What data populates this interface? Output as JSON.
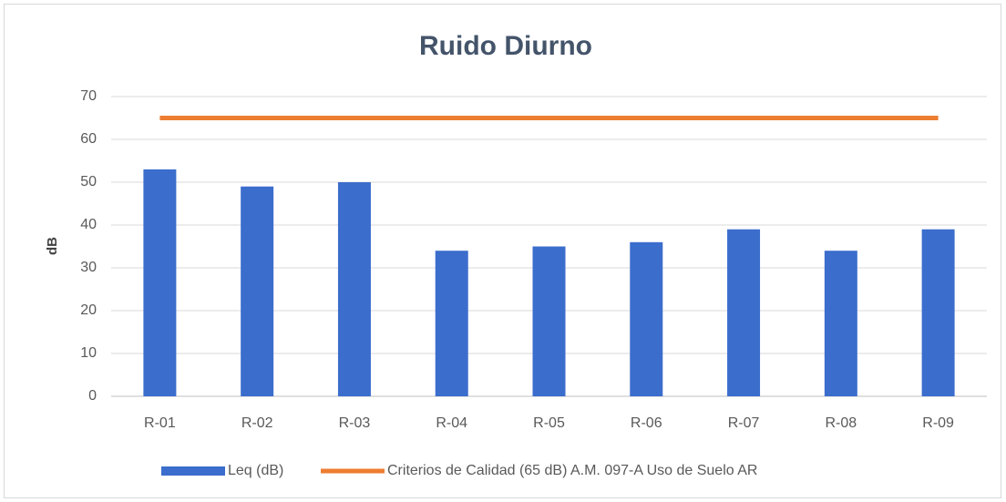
{
  "chart_data": {
    "type": "bar",
    "title": "Ruido Diurno",
    "y_label": "dB",
    "categories": [
      "R-01",
      "R-02",
      "R-03",
      "R-04",
      "R-05",
      "R-06",
      "R-07",
      "R-08",
      "R-09"
    ],
    "series": [
      {
        "name": "Leq (dB)",
        "type": "bar",
        "color": "#3b6dcc",
        "values": [
          53,
          49,
          50,
          34,
          35,
          36,
          39,
          34,
          39
        ]
      },
      {
        "name": "Criterios de Calidad (65 dB) A.M. 097-A Uso de Suelo AR",
        "type": "line",
        "color": "#ed7d31",
        "values": [
          65,
          65,
          65,
          65,
          65,
          65,
          65,
          65,
          65
        ]
      }
    ],
    "ylim": [
      0,
      70
    ],
    "yticks": [
      0,
      10,
      20,
      30,
      40,
      50,
      60,
      70
    ],
    "grid": true,
    "legend": "bottom"
  }
}
